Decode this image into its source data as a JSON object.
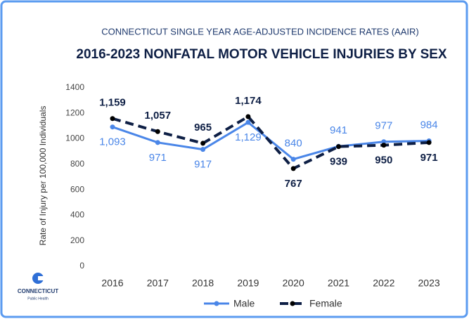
{
  "chart_data": {
    "type": "line",
    "subtitle": "CONNECTICUT SINGLE YEAR AGE-ADJUSTED INCIDENCE RATES (AAIR)",
    "title": "2016-2023 NONFATAL MOTOR VEHICLE INJURIES BY SEX",
    "y_label": "Rate of Injury per 100,000 Individuals",
    "categories": [
      "2016",
      "2017",
      "2018",
      "2019",
      "2020",
      "2021",
      "2022",
      "2023"
    ],
    "series": [
      {
        "name": "Male",
        "color": "#4a86e8",
        "dashed": false,
        "values": [
          1093,
          971,
          917,
          1129,
          840,
          941,
          977,
          984
        ],
        "value_labels": [
          "1,093",
          "971",
          "917",
          "1,129",
          "840",
          "941",
          "977",
          "984"
        ]
      },
      {
        "name": "Female",
        "color": "#0e1f45",
        "dashed": true,
        "values": [
          1159,
          1057,
          965,
          1174,
          767,
          939,
          950,
          971
        ],
        "value_labels": [
          "1,159",
          "1,057",
          "965",
          "1,174",
          "767",
          "939",
          "950",
          "971"
        ]
      }
    ],
    "ylim": [
      0,
      1400
    ],
    "yticks": [
      0,
      200,
      400,
      600,
      800,
      1000,
      1200,
      1400
    ],
    "grid": false,
    "legend": "bottom"
  },
  "logo": {
    "name": "CONNECTICUT",
    "subtitle": "Public Health"
  }
}
